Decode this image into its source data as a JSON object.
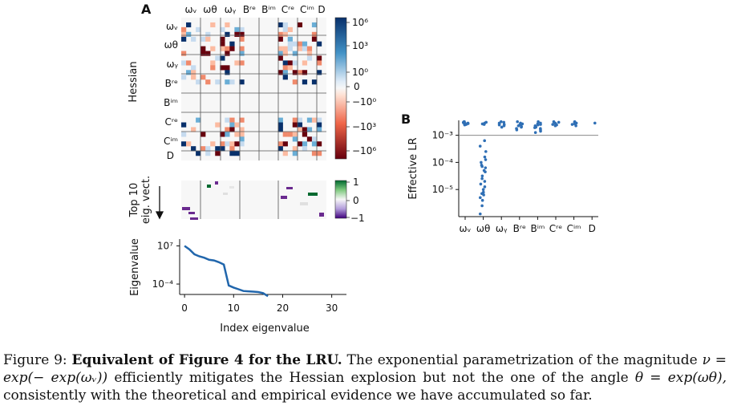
{
  "panel_a_label": "A",
  "panel_b_label": "B",
  "hessian": {
    "ylabel": "Hessian",
    "col_labels": [
      "ωᵥ",
      "ωθ",
      "ωᵧ",
      "Bʳᵉ",
      "Bⁱᵐ",
      "Cʳᵉ",
      "Cⁱᵐ",
      "D"
    ],
    "row_labels": [
      "ωᵥ",
      "ωθ",
      "ωᵧ",
      "Bʳᵉ",
      "Bⁱᵐ",
      "Cʳᵉ",
      "Cⁱᵐ",
      "D"
    ],
    "colorbar_ticks": [
      "10⁶",
      "10³",
      "10⁰",
      "0",
      "−10⁰",
      "−10³",
      "−10⁶"
    ],
    "colors": {
      "pos_strong": "#08306b",
      "pos_mid": "#6aaed6",
      "zero": "#f7f7f7",
      "neg_mid": "#f08a6c",
      "neg_strong": "#67000d"
    }
  },
  "eigvec": {
    "ylabel_line1": "Top 10",
    "ylabel_line2": "eig. vect.",
    "colorbar_ticks": [
      "1",
      "0",
      "−1"
    ],
    "colors": {
      "pos": "#00692f",
      "neg": "#6a2a8f",
      "zero": "#f7f7f7"
    }
  },
  "chart_data": [
    {
      "type": "line",
      "title": "",
      "xlabel": "Index eigenvalue",
      "ylabel": "Eigenvalue",
      "yscale": "log",
      "xlim": [
        -1,
        33
      ],
      "ylim_exp": [
        -7,
        8.5
      ],
      "x_ticks": [
        "0",
        "10",
        "20",
        "30"
      ],
      "y_ticks": [
        "10⁷",
        "10⁻⁴"
      ],
      "x": [
        0,
        1,
        2,
        3,
        4,
        5,
        6,
        7,
        8,
        9,
        10,
        11,
        12,
        13,
        14,
        15,
        16,
        17
      ],
      "y_log10": [
        7.0,
        6.0,
        4.6,
        4.0,
        3.6,
        3.0,
        2.8,
        2.3,
        1.6,
        -4.4,
        -5.0,
        -5.5,
        -6.0,
        -6.1,
        -6.2,
        -6.3,
        -6.6,
        -7.5
      ],
      "line_color": "#2166ac"
    },
    {
      "type": "scatter",
      "title": "",
      "xlabel": "",
      "ylabel": "Effective LR",
      "yscale": "log",
      "categories": [
        "ωᵥ",
        "ωθ",
        "ωᵧ",
        "Bʳᵉ",
        "Bⁱᵐ",
        "Cʳᵉ",
        "Cⁱᵐ",
        "D"
      ],
      "y_ticks": [
        "10⁻³",
        "10⁻⁴",
        "10⁻⁵"
      ],
      "ylim_exp": [
        -6.0,
        -2.45
      ],
      "reference_line": 0.001,
      "series": [
        {
          "name": "ωᵥ",
          "log10_values": [
            -2.5,
            -2.53,
            -2.55,
            -2.58,
            -2.6,
            -2.52,
            -2.57,
            -2.62,
            -2.5,
            -2.56
          ]
        },
        {
          "name": "ωθ",
          "log10_values": [
            -2.52,
            -2.55,
            -2.58,
            -2.6,
            -3.2,
            -3.4,
            -3.6,
            -3.8,
            -3.9,
            -4.0,
            -4.1,
            -4.15,
            -4.2,
            -4.3,
            -4.35,
            -4.5,
            -4.6,
            -4.7,
            -4.8,
            -4.9,
            -5.0,
            -5.1,
            -5.15,
            -5.2,
            -5.3,
            -5.4,
            -5.6,
            -5.9
          ]
        },
        {
          "name": "ωᵧ",
          "log10_values": [
            -2.5,
            -2.55,
            -2.6,
            -2.65,
            -2.7,
            -2.58,
            -2.62,
            -2.52
          ]
        },
        {
          "name": "Bʳᵉ",
          "log10_values": [
            -2.5,
            -2.55,
            -2.6,
            -2.65,
            -2.7,
            -2.75,
            -2.8,
            -2.58,
            -2.62,
            -2.68
          ]
        },
        {
          "name": "Bⁱᵐ",
          "log10_values": [
            -2.5,
            -2.55,
            -2.6,
            -2.65,
            -2.7,
            -2.75,
            -2.8,
            -2.85,
            -2.9,
            -2.58,
            -2.62,
            -2.72
          ]
        },
        {
          "name": "Cʳᵉ",
          "log10_values": [
            -2.5,
            -2.55,
            -2.6,
            -2.65,
            -2.52,
            -2.58,
            -2.62
          ]
        },
        {
          "name": "Cⁱᵐ",
          "log10_values": [
            -2.5,
            -2.55,
            -2.6,
            -2.65,
            -2.52,
            -2.58
          ]
        },
        {
          "name": "D",
          "log10_values": [
            -2.55
          ]
        }
      ],
      "point_color": "#2f6fb5"
    }
  ],
  "caption": {
    "label": "Figure 9:",
    "bold": "Equivalent of Figure 4 for the LRU.",
    "text1": "The exponential parametrization of the magnitude",
    "math1": "ν = exp(− exp(ωᵥ))",
    "text2": "efficiently mitigates the Hessian explosion but not the one of the angle",
    "math2": "θ = exp(ωθ),",
    "text3": "consistently with the theoretical and empirical evidence we have accumulated so far."
  }
}
